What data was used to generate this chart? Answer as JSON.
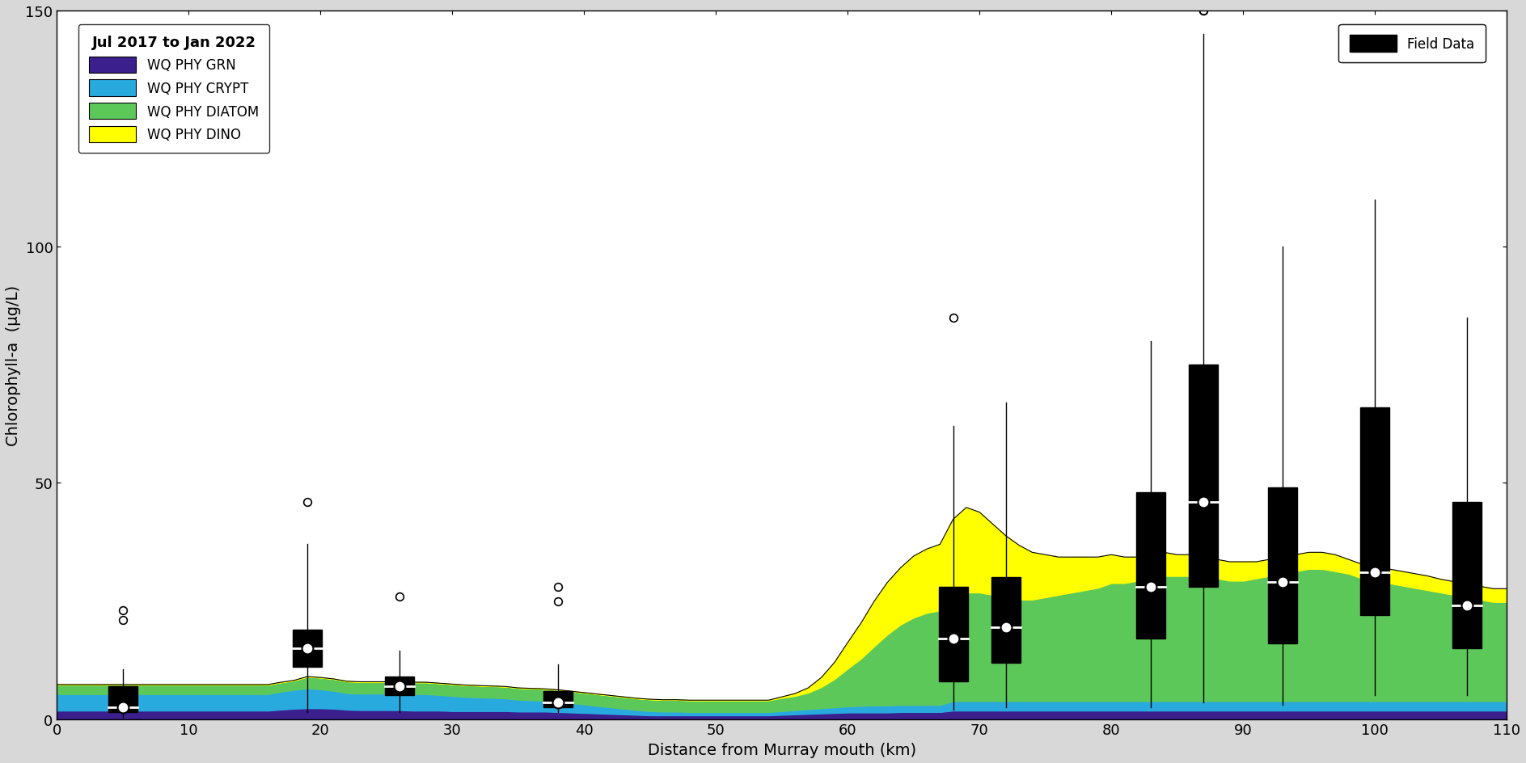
{
  "title": "",
  "xlabel": "Distance from Murray mouth (km)",
  "ylabel": "Chlorophyll-a  (μg/L)",
  "xlim": [
    0,
    110
  ],
  "ylim": [
    0,
    150
  ],
  "xticks": [
    0,
    10,
    20,
    30,
    40,
    50,
    60,
    70,
    80,
    90,
    100,
    110
  ],
  "yticks": [
    0,
    50,
    100,
    150
  ],
  "legend_title": "Jul 2017 to Jan 2022",
  "colors": {
    "GRN": "#3B1F8C",
    "CRYPT": "#29AADF",
    "DIATOM": "#5DC85A",
    "DINO": "#FFFF00"
  },
  "labels": {
    "GRN": "WQ PHY GRN",
    "CRYPT": "WQ PHY CRYPT",
    "DIATOM": "WQ PHY DIATOM",
    "DINO": "WQ PHY DINO"
  },
  "stacked_x": [
    0,
    1,
    2,
    3,
    4,
    5,
    6,
    7,
    8,
    9,
    10,
    11,
    12,
    13,
    14,
    15,
    16,
    17,
    18,
    19,
    20,
    21,
    22,
    23,
    24,
    25,
    26,
    27,
    28,
    29,
    30,
    31,
    32,
    33,
    34,
    35,
    36,
    37,
    38,
    39,
    40,
    41,
    42,
    43,
    44,
    45,
    46,
    47,
    48,
    49,
    50,
    51,
    52,
    53,
    54,
    55,
    56,
    57,
    58,
    59,
    60,
    61,
    62,
    63,
    64,
    65,
    66,
    67,
    68,
    69,
    70,
    71,
    72,
    73,
    74,
    75,
    76,
    77,
    78,
    79,
    80,
    81,
    82,
    83,
    84,
    85,
    86,
    87,
    88,
    89,
    90,
    91,
    92,
    93,
    94,
    95,
    96,
    97,
    98,
    99,
    100,
    101,
    102,
    103,
    104,
    105,
    106,
    107,
    108,
    109,
    110
  ],
  "GRN_y": [
    1.8,
    1.8,
    1.8,
    1.8,
    1.8,
    1.8,
    1.8,
    1.8,
    1.8,
    1.8,
    1.8,
    1.8,
    1.8,
    1.8,
    1.8,
    1.8,
    1.8,
    2.0,
    2.2,
    2.3,
    2.3,
    2.2,
    2.0,
    1.9,
    1.9,
    1.9,
    1.9,
    1.8,
    1.8,
    1.8,
    1.7,
    1.7,
    1.7,
    1.7,
    1.7,
    1.6,
    1.6,
    1.6,
    1.5,
    1.4,
    1.3,
    1.2,
    1.1,
    1.0,
    0.9,
    0.8,
    0.8,
    0.8,
    0.8,
    0.8,
    0.8,
    0.8,
    0.8,
    0.8,
    0.8,
    0.9,
    1.0,
    1.1,
    1.2,
    1.3,
    1.4,
    1.4,
    1.4,
    1.4,
    1.5,
    1.5,
    1.5,
    1.5,
    1.8,
    1.8,
    1.8,
    1.8,
    1.8,
    1.8,
    1.8,
    1.8,
    1.8,
    1.8,
    1.8,
    1.8,
    1.8,
    1.8,
    1.8,
    1.8,
    1.8,
    1.8,
    1.8,
    1.8,
    1.8,
    1.8,
    1.8,
    1.8,
    1.8,
    1.8,
    1.8,
    1.8,
    1.8,
    1.8,
    1.8,
    1.8,
    1.8,
    1.8,
    1.8,
    1.8,
    1.8,
    1.8,
    1.8,
    1.8,
    1.8,
    1.8,
    1.8
  ],
  "CRYPT_y": [
    3.5,
    3.5,
    3.5,
    3.5,
    3.5,
    3.5,
    3.5,
    3.5,
    3.5,
    3.5,
    3.5,
    3.5,
    3.5,
    3.5,
    3.5,
    3.5,
    3.5,
    3.8,
    4.0,
    4.2,
    4.0,
    3.8,
    3.5,
    3.5,
    3.5,
    3.5,
    3.5,
    3.5,
    3.5,
    3.3,
    3.2,
    3.0,
    2.9,
    2.8,
    2.7,
    2.5,
    2.4,
    2.3,
    2.2,
    2.0,
    1.8,
    1.6,
    1.4,
    1.2,
    1.0,
    0.9,
    0.8,
    0.8,
    0.7,
    0.7,
    0.7,
    0.7,
    0.7,
    0.7,
    0.7,
    0.8,
    0.9,
    1.0,
    1.1,
    1.2,
    1.3,
    1.4,
    1.5,
    1.5,
    1.5,
    1.5,
    1.5,
    1.5,
    2.0,
    2.0,
    2.0,
    2.0,
    2.0,
    2.0,
    2.0,
    2.0,
    2.0,
    2.0,
    2.0,
    2.0,
    2.0,
    2.0,
    2.0,
    2.0,
    2.0,
    2.0,
    2.0,
    2.0,
    2.0,
    2.0,
    2.0,
    2.0,
    2.0,
    2.0,
    2.0,
    2.0,
    2.0,
    2.0,
    2.0,
    2.0,
    2.0,
    2.0,
    2.0,
    2.0,
    2.0,
    2.0,
    2.0,
    2.0,
    2.0,
    2.0,
    2.0
  ],
  "DIATOM_y": [
    2.0,
    2.0,
    2.0,
    2.0,
    2.0,
    2.0,
    2.0,
    2.0,
    2.0,
    2.0,
    2.0,
    2.0,
    2.0,
    2.0,
    2.0,
    2.0,
    2.0,
    2.0,
    2.0,
    2.5,
    2.5,
    2.5,
    2.5,
    2.5,
    2.5,
    2.5,
    2.5,
    2.5,
    2.5,
    2.5,
    2.5,
    2.5,
    2.5,
    2.5,
    2.5,
    2.5,
    2.5,
    2.5,
    2.5,
    2.5,
    2.5,
    2.5,
    2.5,
    2.5,
    2.5,
    2.5,
    2.5,
    2.5,
    2.5,
    2.5,
    2.5,
    2.5,
    2.5,
    2.5,
    2.5,
    2.8,
    3.0,
    3.5,
    4.5,
    6.0,
    8.0,
    10.0,
    12.5,
    15.0,
    17.0,
    18.5,
    19.5,
    20.0,
    22.0,
    23.0,
    23.0,
    22.5,
    22.0,
    21.5,
    21.5,
    22.0,
    22.5,
    23.0,
    23.5,
    24.0,
    25.0,
    25.0,
    25.5,
    26.0,
    26.5,
    26.5,
    26.5,
    26.0,
    26.0,
    25.5,
    25.5,
    26.0,
    26.5,
    27.0,
    27.5,
    28.0,
    28.0,
    27.5,
    27.0,
    26.0,
    25.5,
    25.0,
    24.5,
    24.0,
    23.5,
    23.0,
    22.5,
    22.0,
    21.5,
    21.0,
    21.0
  ],
  "DINO_y": [
    0.0,
    0.0,
    0.0,
    0.0,
    0.0,
    0.0,
    0.0,
    0.0,
    0.0,
    0.0,
    0.0,
    0.0,
    0.0,
    0.0,
    0.0,
    0.0,
    0.0,
    0.0,
    0.0,
    0.0,
    0.0,
    0.0,
    0.0,
    0.0,
    0.0,
    0.0,
    0.0,
    0.0,
    0.0,
    0.0,
    0.0,
    0.0,
    0.0,
    0.0,
    0.0,
    0.0,
    0.0,
    0.0,
    0.0,
    0.0,
    0.0,
    0.0,
    0.0,
    0.0,
    0.0,
    0.0,
    0.0,
    0.0,
    0.0,
    0.0,
    0.0,
    0.0,
    0.0,
    0.0,
    0.0,
    0.2,
    0.5,
    1.0,
    2.0,
    3.5,
    5.5,
    7.5,
    9.5,
    11.0,
    12.0,
    13.0,
    13.5,
    14.0,
    16.5,
    18.0,
    17.0,
    15.0,
    13.0,
    11.5,
    10.0,
    9.0,
    8.0,
    7.5,
    7.0,
    6.5,
    6.0,
    5.5,
    5.0,
    5.0,
    5.0,
    4.5,
    4.5,
    4.5,
    4.0,
    4.0,
    4.0,
    3.5,
    3.5,
    3.5,
    3.5,
    3.5,
    3.5,
    3.5,
    3.0,
    3.0,
    3.0,
    3.0,
    3.0,
    3.0,
    3.0,
    2.8,
    2.8,
    2.8,
    2.8,
    2.8,
    2.8
  ],
  "boxplot_data": [
    {
      "x": 5,
      "median": 2.5,
      "q1": 1.5,
      "q3": 7.0,
      "whislo": 0.5,
      "whishi": 10.5,
      "fliers": [
        21.0,
        23.0
      ]
    },
    {
      "x": 19,
      "median": 15.0,
      "q1": 11.0,
      "q3": 19.0,
      "whislo": 1.5,
      "whishi": 37.0,
      "fliers": [
        46.0
      ]
    },
    {
      "x": 26,
      "median": 7.0,
      "q1": 5.0,
      "q3": 9.0,
      "whislo": 1.5,
      "whishi": 14.5,
      "fliers": [
        26.0
      ]
    },
    {
      "x": 38,
      "median": 3.5,
      "q1": 2.5,
      "q3": 6.0,
      "whislo": 1.5,
      "whishi": 11.5,
      "fliers": [
        25.0,
        28.0
      ]
    },
    {
      "x": 68,
      "median": 17.0,
      "q1": 8.0,
      "q3": 28.0,
      "whislo": 2.0,
      "whishi": 62.0,
      "fliers": [
        85.0
      ]
    },
    {
      "x": 72,
      "median": 19.5,
      "q1": 12.0,
      "q3": 30.0,
      "whislo": 2.5,
      "whishi": 67.0,
      "fliers": []
    },
    {
      "x": 83,
      "median": 28.0,
      "q1": 17.0,
      "q3": 48.0,
      "whislo": 2.5,
      "whishi": 80.0,
      "fliers": []
    },
    {
      "x": 87,
      "median": 46.0,
      "q1": 28.0,
      "q3": 75.0,
      "whislo": 3.5,
      "whishi": 145.0,
      "fliers": [
        150.0,
        150.0
      ]
    },
    {
      "x": 93,
      "median": 29.0,
      "q1": 16.0,
      "q3": 49.0,
      "whislo": 3.0,
      "whishi": 100.0,
      "fliers": []
    },
    {
      "x": 100,
      "median": 31.0,
      "q1": 22.0,
      "q3": 66.0,
      "whislo": 5.0,
      "whishi": 110.0,
      "fliers": []
    },
    {
      "x": 107,
      "median": 24.0,
      "q1": 15.0,
      "q3": 46.0,
      "whislo": 5.0,
      "whishi": 85.0,
      "fliers": []
    }
  ],
  "box_width": 2.2,
  "background_color": "#ffffff",
  "figure_bg": "#d8d8d8"
}
